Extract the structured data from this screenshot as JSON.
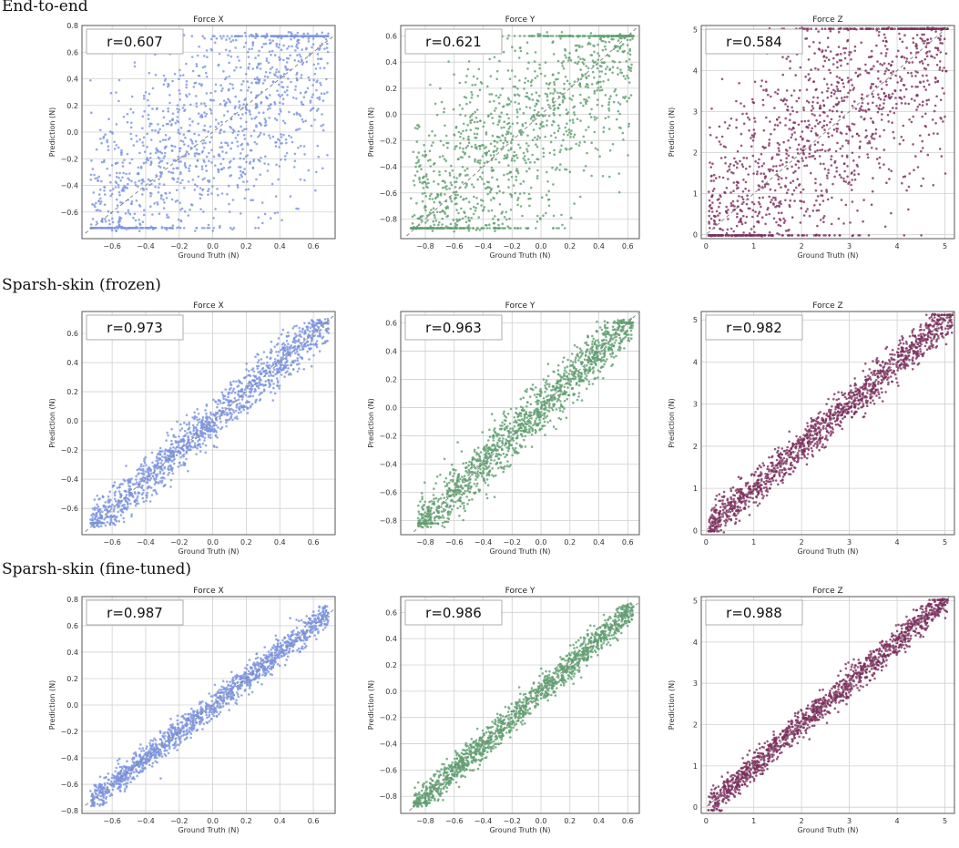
{
  "sections": [
    "End-to-end",
    "Sparsh-skin (frozen)",
    "Sparsh-skin (fine-tuned)"
  ],
  "colors": {
    "force_x": "#7b93e0",
    "force_y": "#5f9f6f",
    "force_z": "#7a2e5c",
    "diagonal": "#888888"
  },
  "chart_data": [
    {
      "type": "scatter",
      "section": 0,
      "title": "Force X",
      "xlabel": "Ground Truth (N)",
      "ylabel": "Prediction (N)",
      "annotation": "r=0.607",
      "r": 0.607,
      "color_key": "force_x",
      "xlim": [
        -0.78,
        0.73
      ],
      "ylim": [
        -0.8,
        0.8
      ],
      "xticks": [
        -0.6,
        -0.4,
        -0.2,
        0.0,
        0.2,
        0.4,
        0.6
      ],
      "yticks": [
        -0.6,
        -0.4,
        -0.2,
        0.0,
        0.2,
        0.4,
        0.6,
        0.8
      ],
      "grid": true,
      "diagonal": true
    },
    {
      "type": "scatter",
      "section": 0,
      "title": "Force Y",
      "xlabel": "Ground Truth (N)",
      "ylabel": "Prediction (N)",
      "annotation": "r=0.621",
      "r": 0.621,
      "color_key": "force_y",
      "xlim": [
        -0.97,
        0.68
      ],
      "ylim": [
        -0.95,
        0.68
      ],
      "xticks": [
        -0.8,
        -0.6,
        -0.4,
        -0.2,
        0.0,
        0.2,
        0.4,
        0.6
      ],
      "yticks": [
        -0.8,
        -0.6,
        -0.4,
        -0.2,
        0.0,
        0.2,
        0.4,
        0.6
      ],
      "grid": true,
      "diagonal": true
    },
    {
      "type": "scatter",
      "section": 0,
      "title": "Force Z",
      "xlabel": "Ground Truth (N)",
      "ylabel": "Prediction (N)",
      "annotation": "r=0.584",
      "r": 0.584,
      "color_key": "force_z",
      "xlim": [
        -0.1,
        5.2
      ],
      "ylim": [
        -0.1,
        5.1
      ],
      "xticks": [
        0,
        1,
        2,
        3,
        4,
        5
      ],
      "yticks": [
        0,
        1,
        2,
        3,
        4,
        5
      ],
      "grid": true,
      "diagonal": true
    },
    {
      "type": "scatter",
      "section": 1,
      "title": "Force X",
      "xlabel": "Ground Truth (N)",
      "ylabel": "Prediction (N)",
      "annotation": "r=0.973",
      "r": 0.973,
      "color_key": "force_x",
      "xlim": [
        -0.78,
        0.73
      ],
      "ylim": [
        -0.78,
        0.75
      ],
      "xticks": [
        -0.6,
        -0.4,
        -0.2,
        0.0,
        0.2,
        0.4,
        0.6
      ],
      "yticks": [
        -0.6,
        -0.4,
        -0.2,
        0.0,
        0.2,
        0.4,
        0.6
      ],
      "grid": true,
      "diagonal": true
    },
    {
      "type": "scatter",
      "section": 1,
      "title": "Force Y",
      "xlabel": "Ground Truth (N)",
      "ylabel": "Prediction (N)",
      "annotation": "r=0.963",
      "r": 0.963,
      "color_key": "force_y",
      "xlim": [
        -0.97,
        0.68
      ],
      "ylim": [
        -0.9,
        0.68
      ],
      "xticks": [
        -0.8,
        -0.6,
        -0.4,
        -0.2,
        0.0,
        0.2,
        0.4,
        0.6
      ],
      "yticks": [
        -0.8,
        -0.6,
        -0.4,
        -0.2,
        0.0,
        0.2,
        0.4,
        0.6
      ],
      "grid": true,
      "diagonal": true
    },
    {
      "type": "scatter",
      "section": 1,
      "title": "Force Z",
      "xlabel": "Ground Truth (N)",
      "ylabel": "Prediction (N)",
      "annotation": "r=0.982",
      "r": 0.982,
      "color_key": "force_z",
      "xlim": [
        -0.1,
        5.2
      ],
      "ylim": [
        -0.1,
        5.2
      ],
      "xticks": [
        0,
        1,
        2,
        3,
        4,
        5
      ],
      "yticks": [
        0,
        1,
        2,
        3,
        4,
        5
      ],
      "grid": true,
      "diagonal": true
    },
    {
      "type": "scatter",
      "section": 2,
      "title": "Force X",
      "xlabel": "Ground Truth (N)",
      "ylabel": "Prediction (N)",
      "annotation": "r=0.987",
      "r": 0.987,
      "color_key": "force_x",
      "xlim": [
        -0.78,
        0.73
      ],
      "ylim": [
        -0.82,
        0.82
      ],
      "xticks": [
        -0.6,
        -0.4,
        -0.2,
        0.0,
        0.2,
        0.4,
        0.6
      ],
      "yticks": [
        -0.8,
        -0.6,
        -0.4,
        -0.2,
        0.0,
        0.2,
        0.4,
        0.6,
        0.8
      ],
      "grid": true,
      "diagonal": true
    },
    {
      "type": "scatter",
      "section": 2,
      "title": "Force Y",
      "xlabel": "Ground Truth (N)",
      "ylabel": "Prediction (N)",
      "annotation": "r=0.986",
      "r": 0.986,
      "color_key": "force_y",
      "xlim": [
        -0.97,
        0.68
      ],
      "ylim": [
        -0.93,
        0.72
      ],
      "xticks": [
        -0.8,
        -0.6,
        -0.4,
        -0.2,
        0.0,
        0.2,
        0.4,
        0.6
      ],
      "yticks": [
        -0.8,
        -0.6,
        -0.4,
        -0.2,
        0.0,
        0.2,
        0.4,
        0.6
      ],
      "grid": true,
      "diagonal": true
    },
    {
      "type": "scatter",
      "section": 2,
      "title": "Force Z",
      "xlabel": "Ground Truth (N)",
      "ylabel": "Prediction (N)",
      "annotation": "r=0.988",
      "r": 0.988,
      "color_key": "force_z",
      "xlim": [
        -0.1,
        5.2
      ],
      "ylim": [
        -0.15,
        5.1
      ],
      "xticks": [
        0,
        1,
        2,
        3,
        4,
        5
      ],
      "yticks": [
        0,
        1,
        2,
        3,
        4,
        5
      ],
      "grid": true,
      "diagonal": true
    }
  ]
}
